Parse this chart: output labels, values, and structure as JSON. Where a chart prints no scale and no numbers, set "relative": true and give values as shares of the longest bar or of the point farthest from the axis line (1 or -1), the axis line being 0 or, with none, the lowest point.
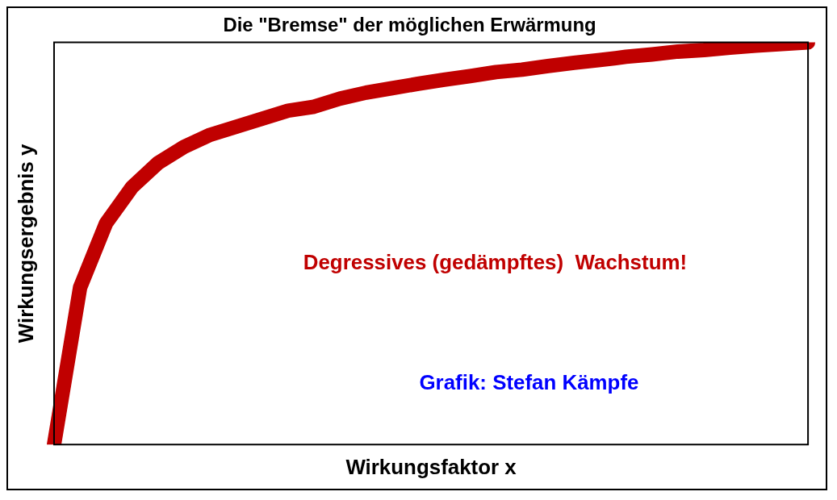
{
  "chart_data": {
    "type": "line",
    "title": "Die \"Bremse\" der möglichen Erwärmung",
    "xlabel": "Wirkungsfaktor x",
    "ylabel": "Wirkungsergebnis y",
    "relative": true,
    "categories": [
      null,
      null,
      null,
      null,
      null,
      null,
      null,
      null,
      null,
      null,
      null,
      null,
      null,
      null,
      null,
      null,
      null,
      null,
      null,
      null,
      null,
      null,
      null,
      null,
      null,
      null,
      null,
      null,
      null,
      null
    ],
    "series": [
      {
        "color": "#c00000",
        "values": [
          0,
          0.39,
          0.55,
          0.64,
          0.7,
          0.74,
          0.77,
          0.79,
          0.81,
          0.83,
          0.84,
          0.86,
          0.875,
          0.886,
          0.897,
          0.907,
          0.916,
          0.926,
          0.932,
          0.941,
          0.949,
          0.956,
          0.964,
          0.97,
          0.977,
          0.981,
          0.987,
          0.992,
          0.996,
          1
        ]
      }
    ],
    "annotations": [
      "Degressives (gedämpftes)  Wachstum!",
      "Grafik: Stefan Kämpfe"
    ],
    "marker": "none",
    "legend": false
  }
}
